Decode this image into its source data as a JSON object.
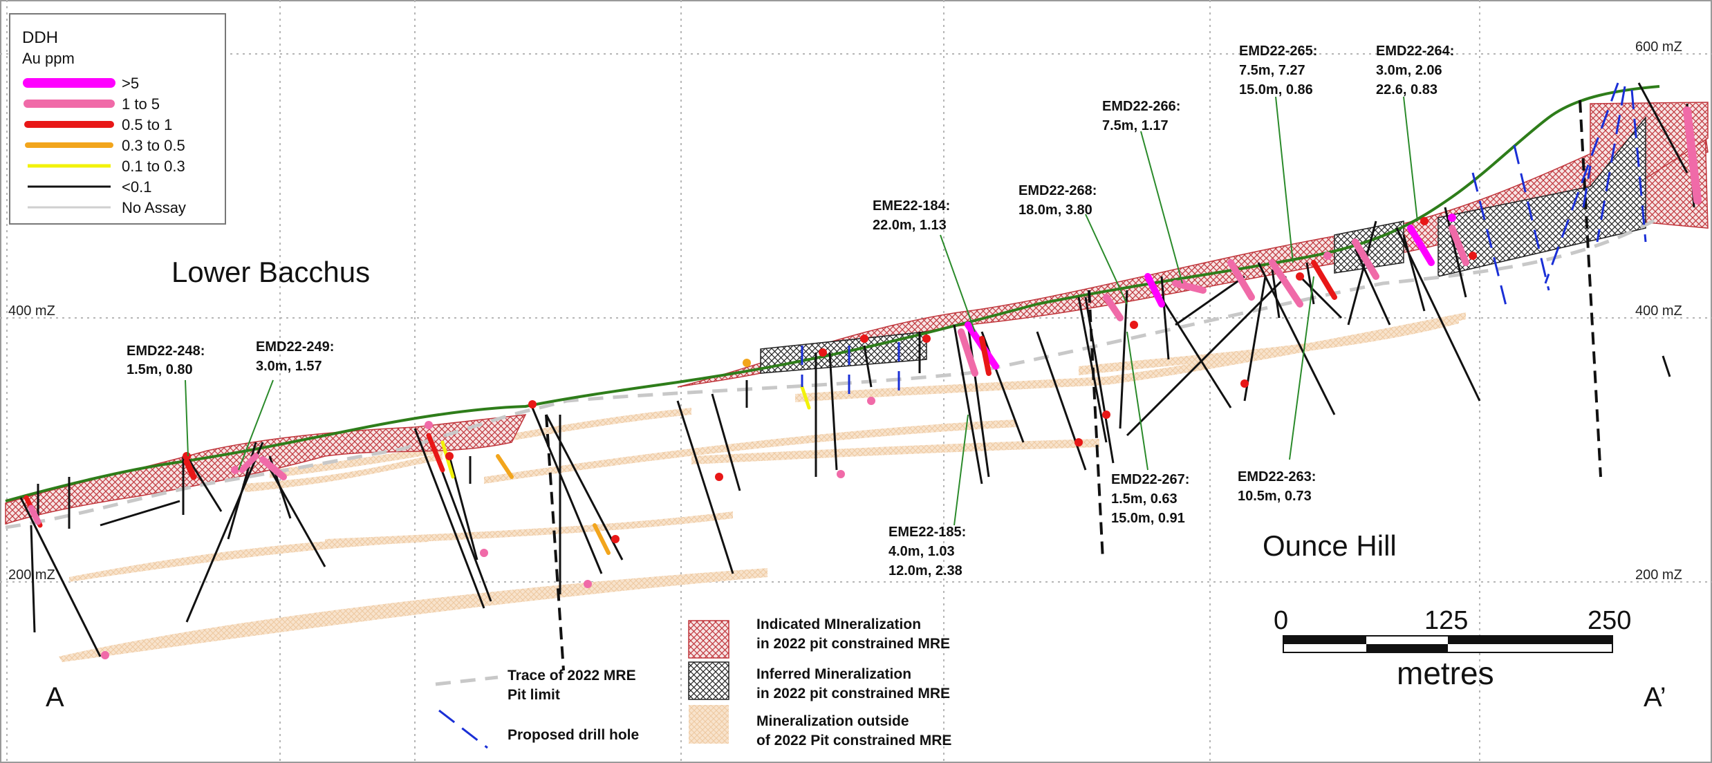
{
  "legend": {
    "title": "DDH",
    "subtitle": "Au ppm",
    "items": [
      {
        "label": ">5",
        "color": "#ff00ff",
        "width": 14
      },
      {
        "label": "1    to  5",
        "color": "#f06aa8",
        "width": 12
      },
      {
        "label": "0.5  to  1",
        "color": "#e81717",
        "width": 10
      },
      {
        "label": "0.3  to  0.5",
        "color": "#f2a51c",
        "width": 8
      },
      {
        "label": "0.1  to  0.3",
        "color": "#f2f20a",
        "width": 5
      },
      {
        "label": "<0.1",
        "color": "#111111",
        "width": 3
      },
      {
        "label": "No Assay",
        "color": "#cfcfcf",
        "width": 3
      }
    ]
  },
  "elevations": {
    "top_right": "600 mZ",
    "mid_left": "400 mZ",
    "mid_right": "400 mZ",
    "low_left": "200 mZ",
    "low_right": "200 mZ"
  },
  "areas": {
    "lower_bacchus": "Lower Bacchus",
    "ounce_hill": "Ounce Hill"
  },
  "section_ends": {
    "start": "A",
    "end": "A’"
  },
  "hole_labels": [
    {
      "id": "emd22-248",
      "lines": [
        "EMD22-248:",
        "1.5m, 0.80"
      ]
    },
    {
      "id": "emd22-249",
      "lines": [
        "EMD22-249:",
        "3.0m, 1.57"
      ]
    },
    {
      "id": "eme22-184",
      "lines": [
        "EME22-184:",
        "22.0m, 1.13"
      ]
    },
    {
      "id": "emd22-268",
      "lines": [
        "EMD22-268:",
        "18.0m, 3.80"
      ]
    },
    {
      "id": "emd22-266",
      "lines": [
        "EMD22-266:",
        "7.5m, 1.17"
      ]
    },
    {
      "id": "emd22-265",
      "lines": [
        "EMD22-265:",
        "7.5m, 7.27",
        "15.0m, 0.86"
      ]
    },
    {
      "id": "emd22-264",
      "lines": [
        "EMD22-264:",
        "3.0m, 2.06",
        "22.6, 0.83"
      ]
    },
    {
      "id": "eme22-185",
      "lines": [
        "EME22-185:",
        "4.0m, 1.03",
        "12.0m, 2.38"
      ]
    },
    {
      "id": "emd22-267",
      "lines": [
        "EMD22-267:",
        "1.5m, 0.63",
        "15.0m, 0.91"
      ]
    },
    {
      "id": "emd22-263",
      "lines": [
        "EMD22-263:",
        "10.5m, 0.73"
      ]
    }
  ],
  "bottom_legend": {
    "pit_trace": [
      "Trace of 2022 MRE",
      "Pit limit"
    ],
    "proposed": "Proposed drill hole",
    "indicated": [
      "Indicated MIneralization",
      "in 2022 pit constrained MRE"
    ],
    "inferred": [
      "Inferred Mineralization",
      "in 2022 pit constrained MRE"
    ],
    "outside": [
      "Mineralization outside",
      "of 2022 Pit constrained MRE"
    ]
  },
  "scale_bar": {
    "ticks": [
      "0",
      "125",
      "250"
    ],
    "unit": "metres"
  },
  "colors": {
    "topography": "#2e7d1a",
    "indicated": "#c0363c",
    "inferred": "#222222",
    "outside": "#f2c7a0",
    "pit_trace": "#c8c8c8",
    "proposed": "#1a2fd6",
    "callout": "#2a8a2a",
    "grid": "#b5b5b5"
  }
}
